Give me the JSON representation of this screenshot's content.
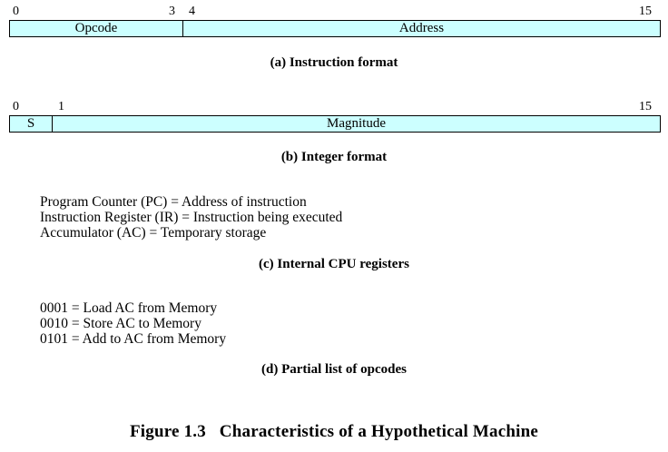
{
  "colors": {
    "field_fill": "#ccffff",
    "border": "#000000",
    "text": "#000000"
  },
  "instruction_format": {
    "bit_labels": {
      "start": "0",
      "mid_end": "3",
      "mid_start": "4",
      "end": "15"
    },
    "fields": [
      {
        "label": "Opcode"
      },
      {
        "label": "Address"
      }
    ],
    "caption": "(a) Instruction format"
  },
  "integer_format": {
    "bit_labels": {
      "start": "0",
      "mid_start": "1",
      "end": "15"
    },
    "fields": [
      {
        "label": "S"
      },
      {
        "label": "Magnitude"
      }
    ],
    "caption": "(b) Integer format"
  },
  "cpu_registers": {
    "lines": [
      "Program Counter (PC) = Address of instruction",
      "Instruction Register (IR) = Instruction being executed",
      "Accumulator (AC) = Temporary storage"
    ],
    "caption": "(c) Internal CPU registers"
  },
  "opcodes": {
    "lines": [
      "0001 = Load AC from Memory",
      "0010 = Store AC to Memory",
      "0101 = Add to AC from Memory"
    ],
    "caption": "(d) Partial list of opcodes"
  },
  "figure_title": "Figure 1.3   Characteristics of a Hypothetical Machine"
}
